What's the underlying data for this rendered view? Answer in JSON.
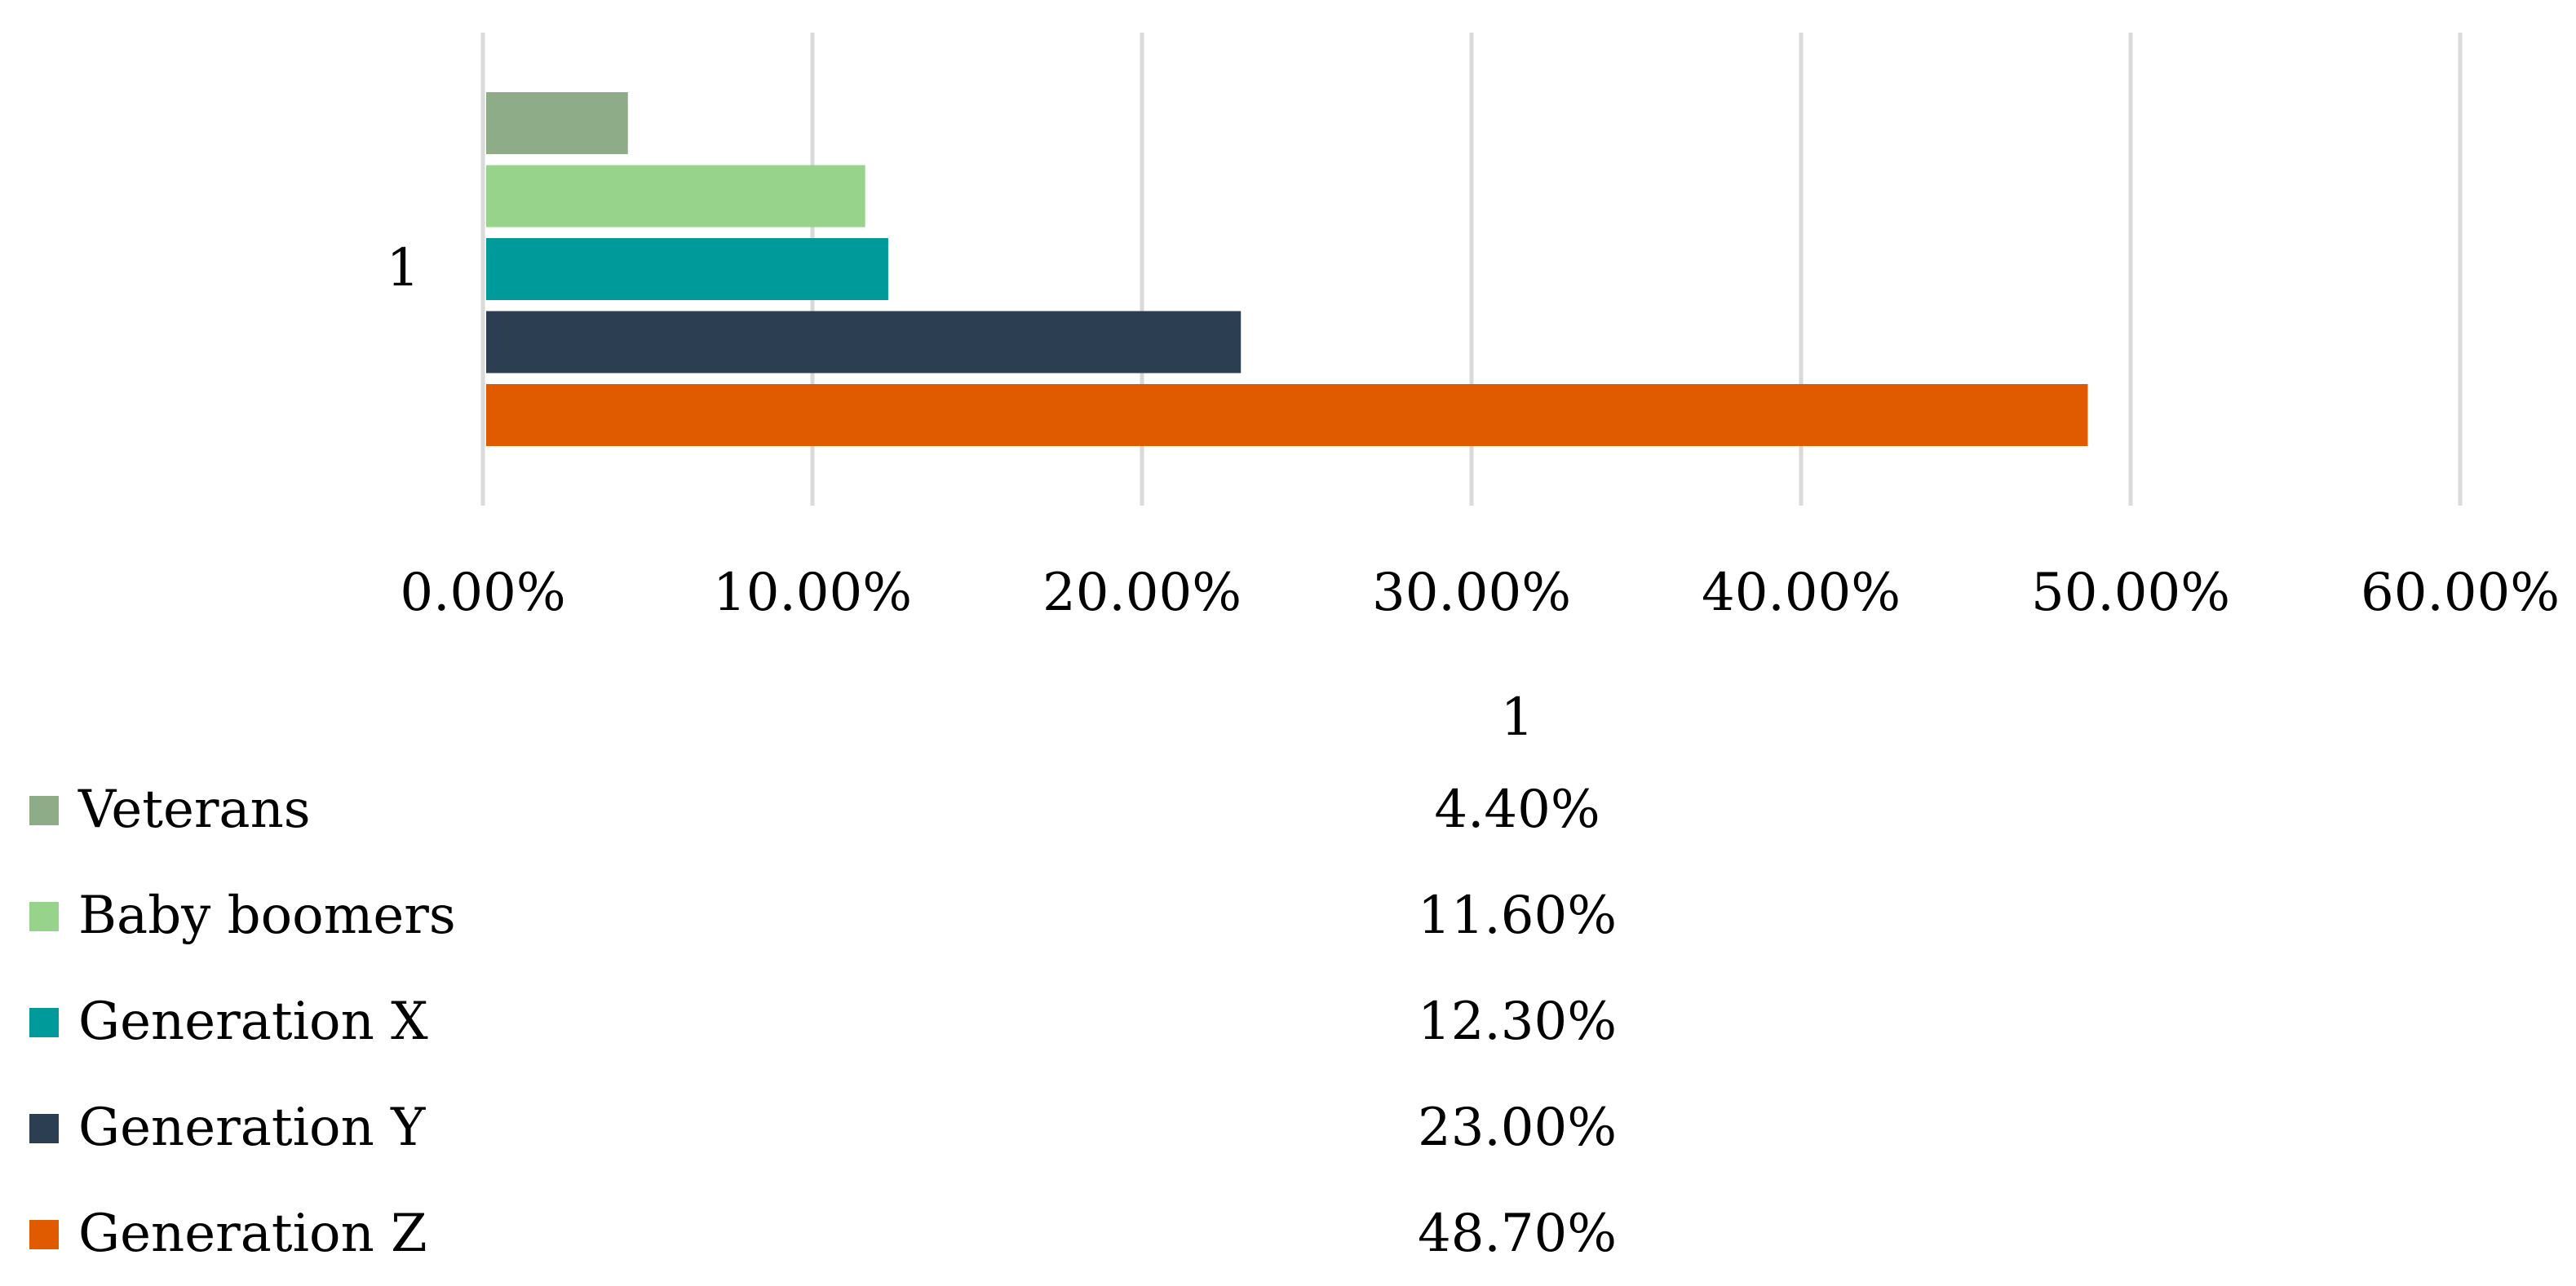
{
  "chart_data": {
    "type": "bar",
    "orientation": "horizontal",
    "categories": [
      "1"
    ],
    "series": [
      {
        "name": "Veterans",
        "values": [
          4.4
        ],
        "label": "4.40%",
        "color": "#8fac89"
      },
      {
        "name": "Baby boomers",
        "values": [
          11.6
        ],
        "label": "11.60%",
        "color": "#98d38c"
      },
      {
        "name": "Generation X",
        "values": [
          12.3
        ],
        "label": "12.30%",
        "color": "#009a9a"
      },
      {
        "name": "Generation Y",
        "values": [
          23.0
        ],
        "label": "23.00%",
        "color": "#2b3e52"
      },
      {
        "name": "Generation Z",
        "values": [
          48.7
        ],
        "label": "48.70%",
        "color": "#e05a00"
      }
    ],
    "xlim": [
      0,
      60
    ],
    "x_ticks": [
      "0.00%",
      "10.00%",
      "20.00%",
      "30.00%",
      "40.00%",
      "50.00%",
      "60.00%"
    ],
    "grid": "vertical",
    "gridline_color": "#d9d9d9",
    "legend": "data table with legend keys below the chart",
    "table_header": "1"
  }
}
